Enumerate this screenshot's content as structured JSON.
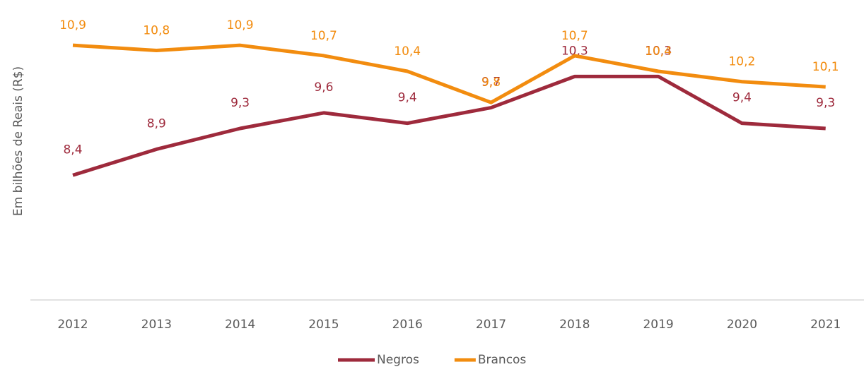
{
  "chart_data": {
    "type": "line",
    "y_axis_label": "Em bilhões de Reais (R$)",
    "categories": [
      "2012",
      "2013",
      "2014",
      "2015",
      "2016",
      "2017",
      "2018",
      "2019",
      "2020",
      "2021"
    ],
    "series": [
      {
        "name": "Negros",
        "color": "#9e2a3c",
        "values": [
          8.4,
          8.9,
          9.3,
          9.6,
          9.4,
          9.7,
          10.3,
          10.3,
          9.4,
          9.3
        ],
        "value_labels": [
          "8,4",
          "8,9",
          "9,3",
          "9,6",
          "9,4",
          "9,7",
          "10,3",
          "10,3",
          "9,4",
          "9,3"
        ]
      },
      {
        "name": "Brancos",
        "color": "#f28c0f",
        "values": [
          10.9,
          10.8,
          10.9,
          10.7,
          10.4,
          9.8,
          10.7,
          10.4,
          10.2,
          10.1
        ],
        "value_labels": [
          "10,9",
          "10,8",
          "10,9",
          "10,7",
          "10,4",
          "9,8",
          "10,7",
          "10,4",
          "10,2",
          "10,1"
        ]
      }
    ],
    "ylim": [
      6,
      11.5
    ],
    "legend": "bottom"
  }
}
